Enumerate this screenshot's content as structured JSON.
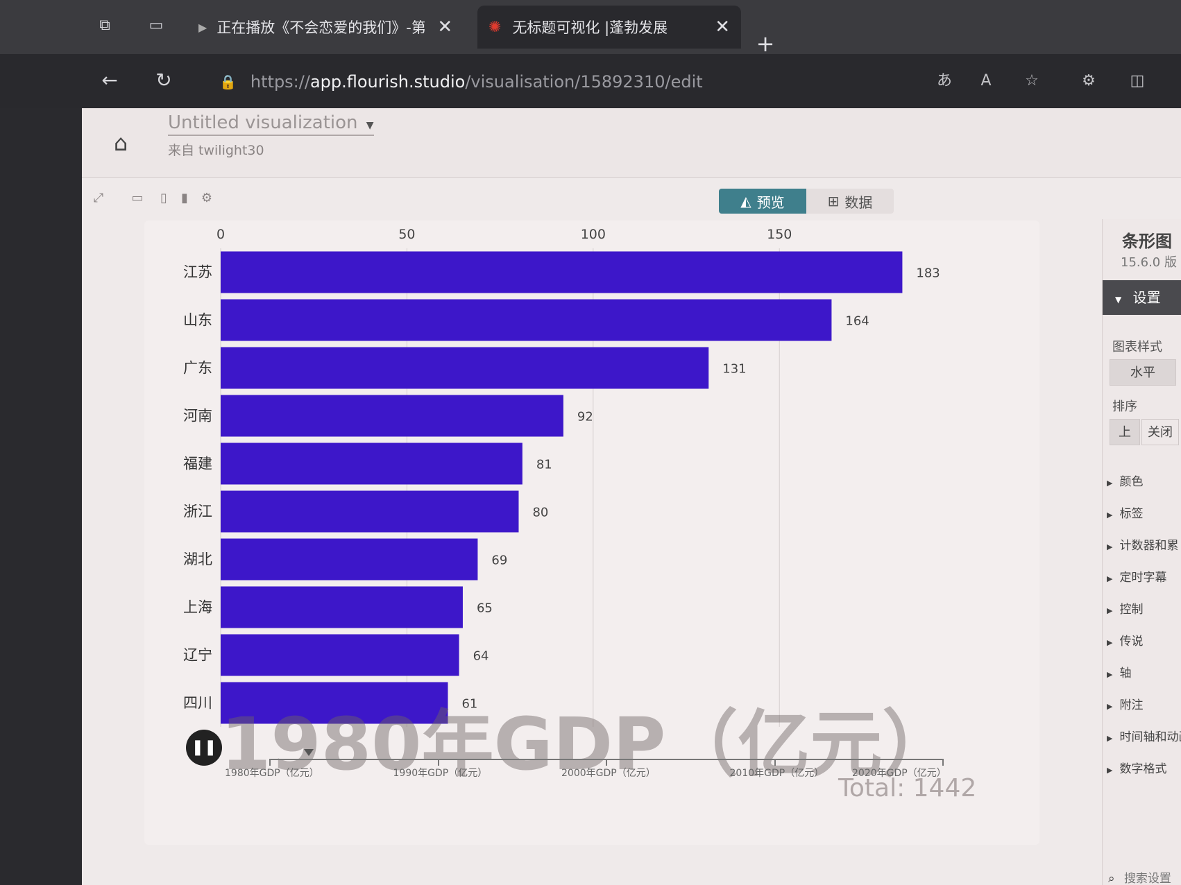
{
  "browser": {
    "tabs": [
      {
        "title": "正在播放《不会恋爱的我们》-第",
        "active": false
      },
      {
        "title": "无标题可视化 |蓬勃发展",
        "active": true
      }
    ],
    "url_scheme": "https://",
    "url_host": "app.flourish.studio",
    "url_path": "/visualisation/15892310/edit",
    "new_tab_symbol": "+"
  },
  "app": {
    "title": "Untitled visualization",
    "source": "来自 twilight30",
    "view_tabs": {
      "preview": "预览",
      "data": "数据"
    }
  },
  "chart_data": {
    "type": "bar",
    "orientation": "horizontal",
    "title": "1980年GDP（亿元）",
    "total_label": "Total: 1442",
    "categories": [
      "江苏",
      "山东",
      "广东",
      "河南",
      "福建",
      "浙江",
      "湖北",
      "上海",
      "辽宁",
      "四川"
    ],
    "values": [
      183,
      164,
      131,
      92,
      81,
      80,
      69,
      65,
      64,
      61
    ],
    "x_ticks": [
      0,
      50,
      100,
      150
    ],
    "xlim": [
      0,
      190
    ],
    "bar_color": "#3d17c9",
    "grid": true
  },
  "timeline": {
    "labels": [
      "1980年GDP（亿元）",
      "1990年GDP（亿元）",
      "2000年GDP（亿元）",
      "2010年GDP（亿元）",
      "2020年GDP（亿元）"
    ]
  },
  "sidebar": {
    "title": "条形图",
    "version": "15.6.0 版",
    "settings_label": "设置",
    "chart_style_label": "图表样式",
    "chart_style_value": "水平",
    "sort_label": "排序",
    "sort_options": [
      "上",
      "关闭"
    ],
    "sections": [
      "颜色",
      "标签",
      "计数器和累",
      "定时字幕",
      "控制",
      "传说",
      "轴",
      "附注",
      "时间轴和动画",
      "数字格式"
    ],
    "search_label": "搜索设置"
  },
  "colors": {
    "accent_tab": "#3f7f8c",
    "bar": "#3d17c9"
  }
}
